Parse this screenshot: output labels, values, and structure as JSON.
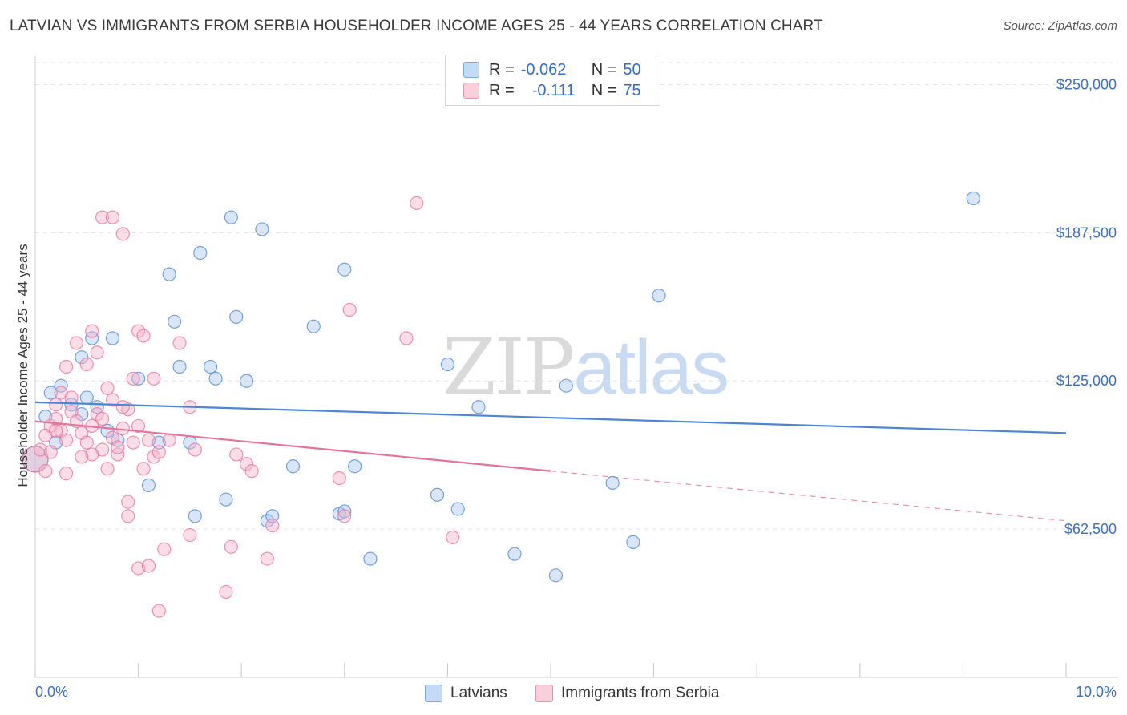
{
  "title": "LATVIAN VS IMMIGRANTS FROM SERBIA HOUSEHOLDER INCOME AGES 25 - 44 YEARS CORRELATION CHART",
  "source": "Source: ZipAtlas.com",
  "watermark": {
    "zip": "ZIP",
    "atlas": "atlas"
  },
  "legend_top": [
    {
      "r_label": "R =",
      "r_value": "-0.062",
      "n_label": "N =",
      "n_value": "50",
      "color": "#a9c8f0"
    },
    {
      "r_label": "R =",
      "r_value": "-0.111",
      "n_label": "N =",
      "n_value": "75",
      "color": "#f5b3c8"
    }
  ],
  "legend_bottom": [
    {
      "label": "Latvians",
      "color": "#a9c8f0"
    },
    {
      "label": "Immigrants from Serbia",
      "color": "#f5b3c8"
    }
  ],
  "chart_data": {
    "type": "scatter",
    "title": "LATVIAN VS IMMIGRANTS FROM SERBIA HOUSEHOLDER INCOME AGES 25 - 44 YEARS CORRELATION CHART",
    "xlabel": "",
    "ylabel": "Householder Income Ages 25 - 44 years",
    "xlim": [
      0,
      10
    ],
    "ylim": [
      0,
      262000
    ],
    "x_tick_labels": [
      "0.0%",
      "10.0%"
    ],
    "y_ticks": [
      62500,
      125000,
      187500,
      250000
    ],
    "y_tick_labels": [
      "$62,500",
      "$125,000",
      "$187,500",
      "$250,000"
    ],
    "grid": true,
    "series": [
      {
        "name": "Latvians",
        "color": "#4a86d8",
        "fill": "#a9c8f0",
        "points": [
          [
            0.0,
            92000
          ],
          [
            0.1,
            110000
          ],
          [
            0.15,
            120000
          ],
          [
            0.25,
            123000
          ],
          [
            0.35,
            115000
          ],
          [
            0.45,
            135000
          ],
          [
            0.6,
            114000
          ],
          [
            0.8,
            100000
          ],
          [
            0.5,
            118000
          ],
          [
            0.7,
            104000
          ],
          [
            0.45,
            111000
          ],
          [
            0.55,
            143000
          ],
          [
            0.75,
            143000
          ],
          [
            1.0,
            126000
          ],
          [
            1.3,
            170000
          ],
          [
            1.35,
            150000
          ],
          [
            1.4,
            131000
          ],
          [
            1.5,
            99000
          ],
          [
            1.1,
            81000
          ],
          [
            1.2,
            99000
          ],
          [
            1.55,
            68000
          ],
          [
            1.6,
            179000
          ],
          [
            1.7,
            131000
          ],
          [
            1.75,
            126000
          ],
          [
            1.9,
            194000
          ],
          [
            1.85,
            75000
          ],
          [
            1.95,
            152000
          ],
          [
            2.05,
            125000
          ],
          [
            2.2,
            189000
          ],
          [
            2.25,
            66000
          ],
          [
            2.3,
            68000
          ],
          [
            2.5,
            89000
          ],
          [
            2.7,
            148000
          ],
          [
            2.95,
            69000
          ],
          [
            3.0,
            70000
          ],
          [
            3.0,
            172000
          ],
          [
            3.1,
            89000
          ],
          [
            3.25,
            50000
          ],
          [
            3.9,
            77000
          ],
          [
            4.0,
            132000
          ],
          [
            4.1,
            71000
          ],
          [
            4.3,
            114000
          ],
          [
            4.65,
            52000
          ],
          [
            5.05,
            43000
          ],
          [
            5.15,
            123000
          ],
          [
            5.6,
            82000
          ],
          [
            5.8,
            57000
          ],
          [
            6.05,
            161000
          ],
          [
            9.1,
            202000
          ],
          [
            0.2,
            99000
          ]
        ],
        "trend": {
          "x": [
            0.0,
            10.0
          ],
          "y": [
            116000,
            103000
          ]
        }
      },
      {
        "name": "Immigrants from Serbia",
        "color": "#e8709a",
        "fill": "#f5b3c8",
        "points": [
          [
            0.0,
            92000
          ],
          [
            0.05,
            96000
          ],
          [
            0.1,
            102000
          ],
          [
            0.15,
            106000
          ],
          [
            0.2,
            109000
          ],
          [
            0.25,
            104000
          ],
          [
            0.3,
            100000
          ],
          [
            0.35,
            112000
          ],
          [
            0.4,
            108000
          ],
          [
            0.45,
            103000
          ],
          [
            0.5,
            99000
          ],
          [
            0.55,
            106000
          ],
          [
            0.6,
            111000
          ],
          [
            0.65,
            96000
          ],
          [
            0.7,
            88000
          ],
          [
            0.75,
            101000
          ],
          [
            0.8,
            94000
          ],
          [
            0.85,
            105000
          ],
          [
            0.9,
            113000
          ],
          [
            0.95,
            99000
          ],
          [
            1.0,
            106000
          ],
          [
            1.05,
            88000
          ],
          [
            1.1,
            100000
          ],
          [
            1.15,
            93000
          ],
          [
            1.2,
            95000
          ],
          [
            0.2,
            115000
          ],
          [
            0.3,
            131000
          ],
          [
            0.4,
            141000
          ],
          [
            0.5,
            132000
          ],
          [
            0.55,
            146000
          ],
          [
            0.6,
            137000
          ],
          [
            0.7,
            122000
          ],
          [
            0.75,
            117000
          ],
          [
            0.85,
            114000
          ],
          [
            0.95,
            126000
          ],
          [
            1.0,
            146000
          ],
          [
            1.05,
            144000
          ],
          [
            1.15,
            126000
          ],
          [
            1.4,
            141000
          ],
          [
            1.5,
            114000
          ],
          [
            0.65,
            194000
          ],
          [
            0.75,
            194000
          ],
          [
            0.85,
            187000
          ],
          [
            0.25,
            120000
          ],
          [
            0.35,
            118000
          ],
          [
            0.15,
            95000
          ],
          [
            0.3,
            86000
          ],
          [
            0.55,
            94000
          ],
          [
            0.9,
            74000
          ],
          [
            0.9,
            68000
          ],
          [
            1.0,
            46000
          ],
          [
            1.1,
            47000
          ],
          [
            1.2,
            28000
          ],
          [
            1.25,
            54000
          ],
          [
            1.5,
            60000
          ],
          [
            1.55,
            96000
          ],
          [
            1.9,
            55000
          ],
          [
            1.95,
            94000
          ],
          [
            2.05,
            90000
          ],
          [
            2.1,
            87000
          ],
          [
            2.25,
            50000
          ],
          [
            2.3,
            64000
          ],
          [
            1.85,
            36000
          ],
          [
            2.95,
            84000
          ],
          [
            3.0,
            68000
          ],
          [
            3.05,
            155000
          ],
          [
            3.6,
            143000
          ],
          [
            3.7,
            200000
          ],
          [
            4.05,
            59000
          ],
          [
            0.1,
            87000
          ],
          [
            0.45,
            93000
          ],
          [
            0.65,
            109000
          ],
          [
            0.8,
            97000
          ],
          [
            1.3,
            100000
          ],
          [
            0.2,
            104000
          ]
        ],
        "trend": {
          "x": [
            0.0,
            5.0
          ],
          "y": [
            108000,
            87000
          ]
        },
        "trend_extension": {
          "x": [
            5.0,
            10.0
          ],
          "y": [
            87000,
            66000
          ]
        }
      }
    ]
  }
}
